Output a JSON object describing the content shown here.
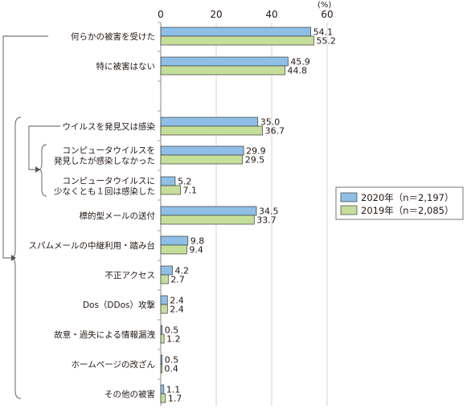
{
  "chart_data": {
    "type": "bar",
    "orientation": "horizontal",
    "unit": "(%)",
    "xlim": [
      0,
      60
    ],
    "xticks": [
      "0",
      "20",
      "40",
      "60"
    ],
    "grid": true,
    "legend_position": "right",
    "categories": [
      [
        "何らかの被害を受けた"
      ],
      [
        "特に被害はない"
      ],
      [
        "ウイルスを発見又は感染"
      ],
      [
        "コンピュータウイルスを",
        "発見したが感染しなかった"
      ],
      [
        "コンピュータウイルスに",
        "少なくとも１回は感染した"
      ],
      [
        "標的型メールの送付"
      ],
      [
        "スパムメールの中継利用・踏み台"
      ],
      [
        "不正アクセス"
      ],
      [
        "Dos（DDos）攻撃"
      ],
      [
        "故意・過失による情報漏洩"
      ],
      [
        "ホームページの改ざん"
      ],
      [
        "その他の被害"
      ]
    ],
    "series": [
      {
        "name": "2020年（n＝2,197）",
        "color": "#8fbfe6",
        "values": [
          54.1,
          45.9,
          35.0,
          29.9,
          5.2,
          34.5,
          9.8,
          4.2,
          2.4,
          0.5,
          0.5,
          1.1
        ],
        "labels": [
          "54.1",
          "45.9",
          "35.0",
          "29.9",
          "5.2",
          "34.5",
          "9.8",
          "4.2",
          "2.4",
          "0.5",
          "0.5",
          "1.1"
        ]
      },
      {
        "name": "2019年（n＝2,085）",
        "color": "#c5df9b",
        "values": [
          55.2,
          44.8,
          36.7,
          29.5,
          7.1,
          33.7,
          9.4,
          2.7,
          2.4,
          1.2,
          0.4,
          1.7
        ],
        "labels": [
          "55.2",
          "44.8",
          "36.7",
          "29.5",
          "7.1",
          "33.7",
          "9.4",
          "2.7",
          "2.4",
          "1.2",
          "0.4",
          "1.7"
        ]
      }
    ]
  }
}
